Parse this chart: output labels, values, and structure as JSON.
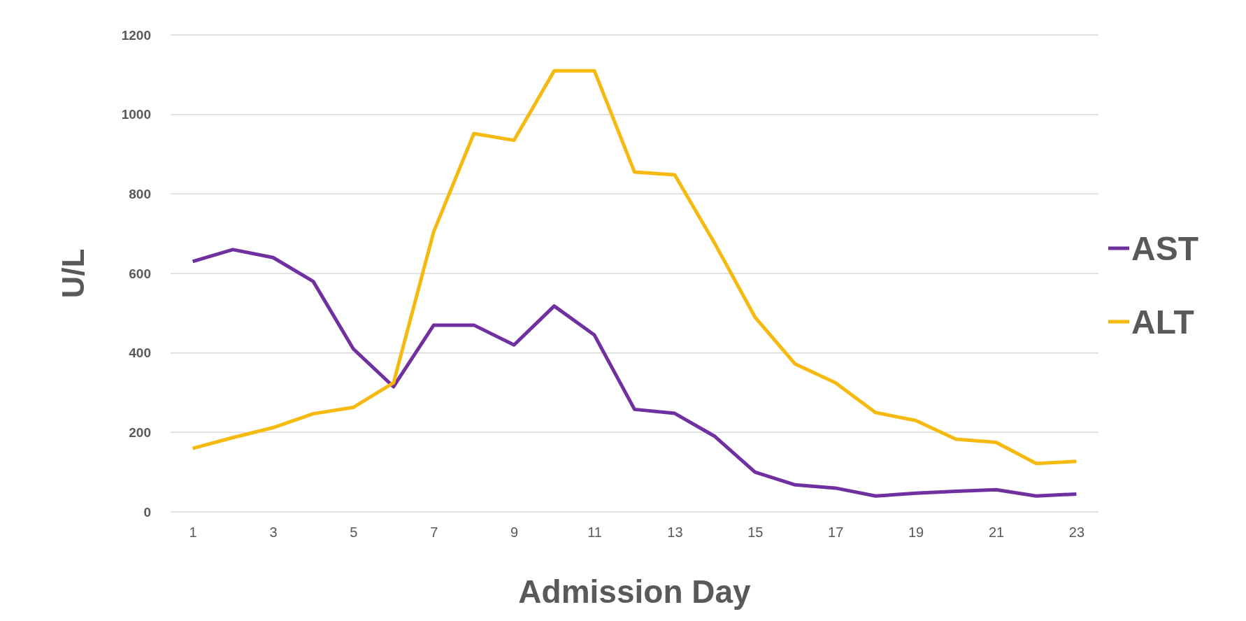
{
  "chart_data": {
    "type": "line",
    "xlabel": "Admission Day",
    "ylabel": "U/L",
    "x": [
      1,
      2,
      3,
      4,
      5,
      6,
      7,
      8,
      9,
      10,
      11,
      12,
      13,
      14,
      15,
      16,
      17,
      18,
      19,
      20,
      21,
      22,
      23
    ],
    "series": [
      {
        "name": "AST",
        "color": "#7030a0",
        "values": [
          630,
          660,
          640,
          580,
          410,
          315,
          470,
          470,
          420,
          518,
          445,
          258,
          248,
          190,
          100,
          68,
          60,
          40,
          47,
          52,
          56,
          40,
          45
        ]
      },
      {
        "name": "ALT",
        "color": "#f5b90f",
        "values": [
          160,
          187,
          212,
          247,
          263,
          325,
          705,
          952,
          935,
          1110,
          1110,
          855,
          848,
          675,
          490,
          372,
          325,
          250,
          230,
          183,
          175,
          122,
          127
        ]
      }
    ],
    "xlim": [
      0.45,
      23.55
    ],
    "xticks": [
      1,
      3,
      5,
      7,
      9,
      11,
      13,
      15,
      17,
      19,
      21,
      23
    ],
    "ylim": [
      0,
      1200
    ],
    "yticks": [
      0,
      200,
      400,
      600,
      800,
      1000,
      1200
    ],
    "grid": "y",
    "legend": "right",
    "marker": "none",
    "line_style": "solid"
  }
}
